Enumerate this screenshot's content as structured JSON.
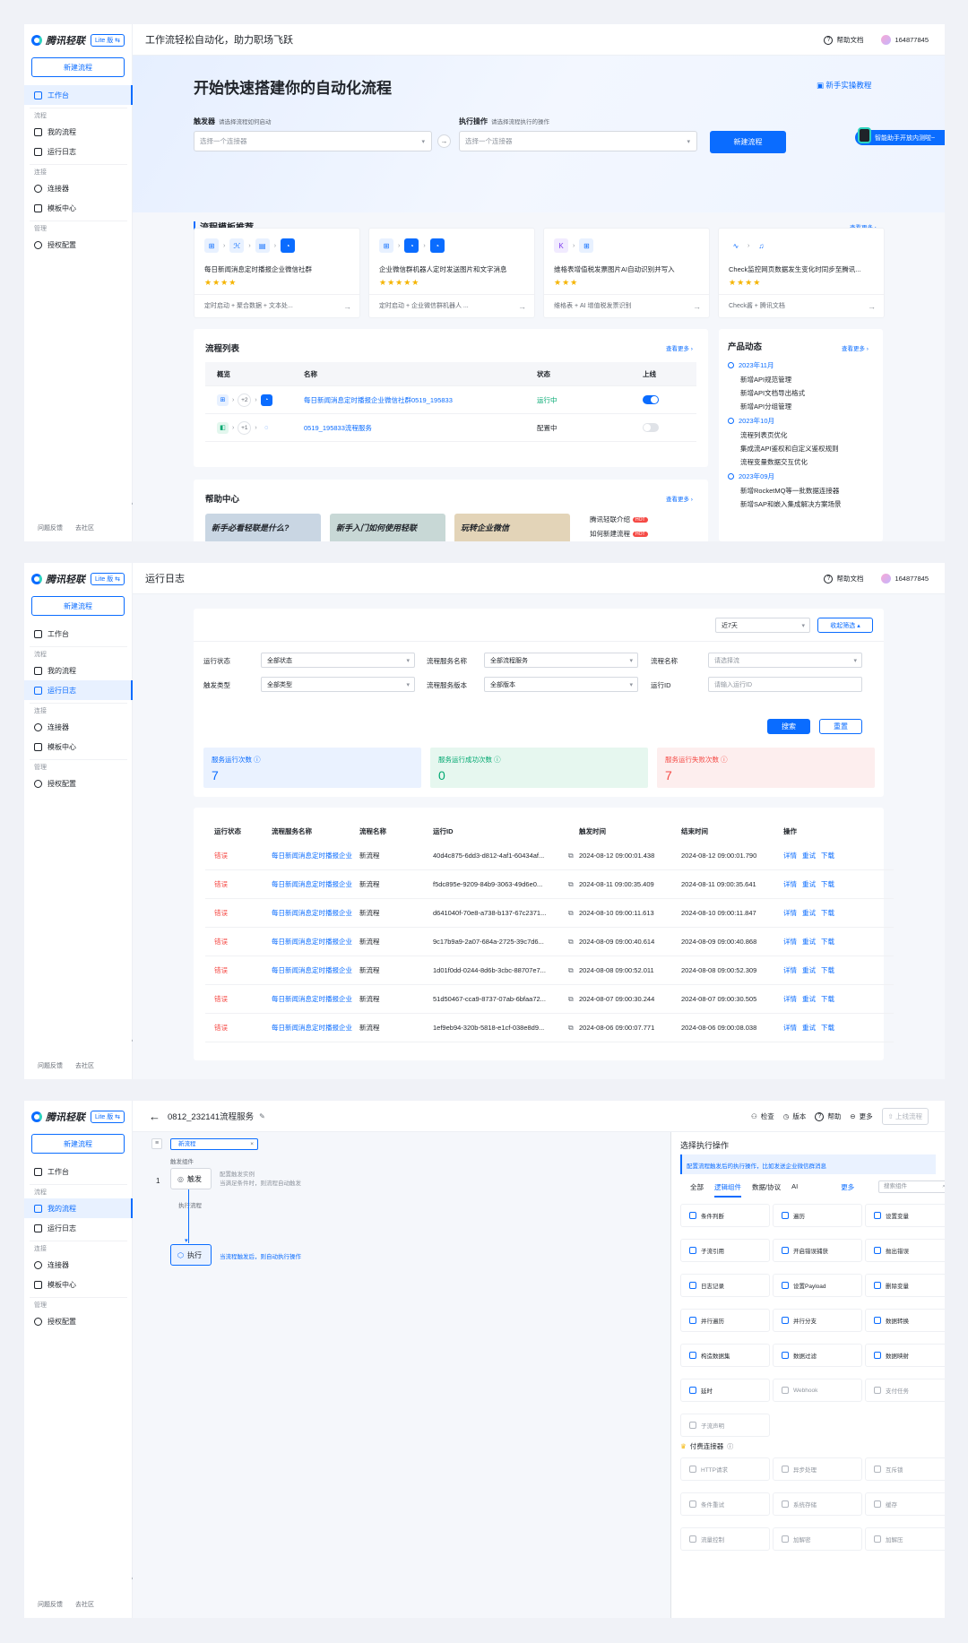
{
  "brand": {
    "name": "腾讯轻联",
    "edition": "Lite 版 ⇆",
    "new_flow": "新建流程"
  },
  "nav": {
    "workbench": "工作台",
    "sec_flow": "流程",
    "my_flows": "我的流程",
    "run_logs": "运行日志",
    "sec_conn": "连接",
    "connectors": "连接器",
    "templates": "模板中心",
    "sec_manage": "管理",
    "auth": "授权配置",
    "feedback": "问题反馈",
    "community": "去社区"
  },
  "top": {
    "help": "帮助文档",
    "user": "164877845"
  },
  "p1": {
    "topbar_title": "工作流轻松自动化，助力职场飞跃",
    "hero_title": "开始快速搭建你的自动化流程",
    "tutorial": "新手实操教程",
    "trigger_label": "触发器",
    "trigger_hint": "请选择流程如何启动",
    "trigger_placeholder": "选择一个连接器",
    "action_label": "执行操作",
    "action_hint": "请选择流程执行的操作",
    "action_placeholder": "选择一个连接器",
    "create_btn": "新建流程",
    "assistant": "智能助手开放内测啦~",
    "templates_title": "流程模板推荐",
    "view_more": "查看更多 ›",
    "templates": [
      {
        "title": "每日新闻消息定时播报企业微信社群",
        "stars": "★★★★",
        "footer": "定时启动 + 聚合数据 + 文本处..."
      },
      {
        "title": "企业微信群机器人定时发送图片和文字消息",
        "stars": "★★★★★",
        "footer": "定时启动 + 企业微信群机器人 ..."
      },
      {
        "title": "维格表增值税发票图片AI自动识别并写入",
        "stars": "★★★",
        "footer": "维格表 + AI 增值税发票识别"
      },
      {
        "title": "Check监控网页数据发生变化时同步至腾讯...",
        "stars": "★★★★",
        "footer": "Check酱 + 腾讯文档"
      }
    ],
    "flow_list_title": "流程列表",
    "flow_view_more": "查看更多 ›",
    "flow_headers": [
      "概览",
      "名称",
      "状态",
      "上线"
    ],
    "flows": [
      {
        "plus": "+2",
        "name": "每日新闻消息定时播报企业微信社群0519_195833",
        "status": "运行中",
        "on": true
      },
      {
        "plus": "+1",
        "name": "0519_195833流程服务",
        "status": "配置中",
        "on": false
      }
    ],
    "news_title": "产品动态",
    "news_view_more": "查看更多 ›",
    "news": [
      {
        "date": "2023年11月",
        "items": [
          "新增API规范管理",
          "新增API文档导出格式",
          "新增API分组管理"
        ]
      },
      {
        "date": "2023年10月",
        "items": [
          "流程列表页优化",
          "集成流API鉴权和自定义鉴权规则",
          "流程变量数据交互优化"
        ]
      },
      {
        "date": "2023年09月",
        "items": [
          "新增RocketMQ等一批数据连接器",
          "新增SAP和嵌入集成解决方案场景"
        ]
      }
    ],
    "help_title": "帮助中心",
    "help_view_more": "查看更多 ›",
    "help_cards": [
      "新手必看轻联是什么?",
      "新手入门如何使用轻联",
      "玩转企业微信"
    ],
    "help_links": [
      "腾讯轻联介绍",
      "如何新建流程"
    ],
    "hot": "HOT"
  },
  "p2": {
    "topbar_title": "运行日志",
    "range": "近7天",
    "collapse_filter": "收起筛选 ▴",
    "f_status": "运行状态",
    "f_status_val": "全部状态",
    "f_service": "流程服务名称",
    "f_service_val": "全部流程服务",
    "f_flow": "流程名称",
    "f_flow_ph": "请选择流",
    "f_trigger": "触发类型",
    "f_trigger_val": "全部类型",
    "f_version": "流程服务版本",
    "f_version_val": "全部版本",
    "f_runid": "运行ID",
    "f_runid_ph": "请输入运行ID",
    "search": "搜索",
    "reset": "重置",
    "stats": [
      {
        "label": "服务运行次数 ⓘ",
        "value": "7"
      },
      {
        "label": "服务运行成功次数 ⓘ",
        "value": "0"
      },
      {
        "label": "服务运行失败次数 ⓘ",
        "value": "7"
      }
    ],
    "headers": [
      "运行状态",
      "流程服务名称",
      "流程名称",
      "运行ID",
      "触发时间",
      "结束时间",
      "操作"
    ],
    "rows": [
      {
        "s": "错误",
        "svc": "每日新闻消息定时播报企业",
        "flow": "新流程",
        "id": "40d4c875-6dd3-d812-4af1-60434af...",
        "t1": "2024-08-12 09:00:01.438",
        "t2": "2024-08-12 09:00:01.790"
      },
      {
        "s": "错误",
        "svc": "每日新闻消息定时播报企业",
        "flow": "新流程",
        "id": "f5dc895e-9209-84b9-3063-49d6e0...",
        "t1": "2024-08-11 09:00:35.409",
        "t2": "2024-08-11 09:00:35.641"
      },
      {
        "s": "错误",
        "svc": "每日新闻消息定时播报企业",
        "flow": "新流程",
        "id": "d641040f-70e8-a738-b137-67c2371...",
        "t1": "2024-08-10 09:00:11.613",
        "t2": "2024-08-10 09:00:11.847"
      },
      {
        "s": "错误",
        "svc": "每日新闻消息定时播报企业",
        "flow": "新流程",
        "id": "9c17b9a9-2a07-684a-2725-39c7d6...",
        "t1": "2024-08-09 09:00:40.614",
        "t2": "2024-08-09 09:00:40.868"
      },
      {
        "s": "错误",
        "svc": "每日新闻消息定时播报企业",
        "flow": "新流程",
        "id": "1d01f0dd-0244-8d6b-3cbc-88707e7...",
        "t1": "2024-08-08 09:00:52.011",
        "t2": "2024-08-08 09:00:52.309"
      },
      {
        "s": "错误",
        "svc": "每日新闻消息定时播报企业",
        "flow": "新流程",
        "id": "51d50467-cca9-8737-07ab-6bfaa72...",
        "t1": "2024-08-07 09:00:30.244",
        "t2": "2024-08-07 09:00:30.505"
      },
      {
        "s": "错误",
        "svc": "每日新闻消息定时播报企业",
        "flow": "新流程",
        "id": "1ef9eb94-320b-5818-e1cf-038e8d9...",
        "t1": "2024-08-06 09:00:07.771",
        "t2": "2024-08-06 09:00:08.038"
      }
    ],
    "ops": [
      "详情",
      "重试",
      "下载"
    ]
  },
  "p3": {
    "title": "0812_232141流程服务",
    "actions": [
      "检查",
      "版本",
      "帮助",
      "更多"
    ],
    "publish": "上线流程",
    "flow_tag": "新流程",
    "trigger_section": "触发组件",
    "step_no": "1",
    "trigger_node": "触发",
    "trigger_desc": "配置触发实例\n当满足条件时，则流程自动触发",
    "exec_section": "执行流程",
    "exec_node": "执行",
    "exec_desc": "当流程触发后，则自动执行操作",
    "panel_title": "选择执行操作",
    "panel_hint": "配置流程触发后的执行操作，比如发送企业微信群消息",
    "tabs": [
      "全部",
      "逻辑组件",
      "数据/协议",
      "AI",
      "更多"
    ],
    "search_ph": "搜索组件",
    "comps": [
      "条件判断",
      "遍历",
      "设置变量",
      "子流引用",
      "开启错误捕获",
      "抛出错误",
      "日志记录",
      "设置Payload",
      "删除变量",
      "并行遍历",
      "并行分支",
      "数据转换",
      "构造数据集",
      "数据过滤",
      "数据映射",
      "延时",
      "Webhook",
      "支付任务",
      "子流声明"
    ],
    "paid_title": "付费连接器",
    "paid": [
      "HTTP请求",
      "异步处理",
      "互斥锁",
      "条件重试",
      "系统存储",
      "缓存",
      "流量控制",
      "加解密",
      "加解压"
    ]
  }
}
